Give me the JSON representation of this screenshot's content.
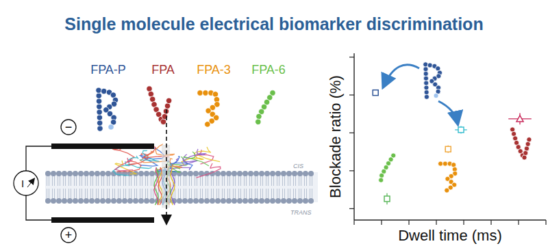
{
  "title": "Single molecule electrical biomarker discrimination",
  "diagram": {
    "cis": "CIS",
    "trans": "TRANS",
    "meter": "I",
    "negative": "−",
    "positive": "+"
  },
  "chart_data": {
    "type": "scatter",
    "xlabel": "Dwell time (ms)",
    "ylabel": "Blockade ratio (%)",
    "xlim": [
      0,
      7
    ],
    "xticks": [
      0,
      1,
      2,
      3,
      4,
      5,
      6,
      7
    ],
    "ylim": [
      -0.3,
      4.1
    ],
    "yticks": [
      0,
      1,
      2,
      3,
      4
    ],
    "tick_labels": false,
    "grid": false,
    "series": [
      {
        "name": "FPA-P",
        "color": "#2f5597",
        "colors": [
          "#2f5597",
          "#3bbfd0"
        ],
        "marker": "square",
        "x": [
          0.78,
          3.9
        ],
        "values": [
          3.06,
          2.08
        ],
        "x_error": [
          0.08,
          0.22
        ],
        "y_error": [
          0.08,
          0.1
        ]
      },
      {
        "name": "FPA",
        "color": "#a83232",
        "colors": [
          "#c8285a"
        ],
        "marker": "triangle",
        "x": [
          6.05
        ],
        "values": [
          2.37
        ],
        "x_error": [
          0.42
        ],
        "y_error": [
          0.15
        ]
      },
      {
        "name": "FPA-3",
        "color": "#e8900c",
        "colors": [
          "#f0a83c"
        ],
        "marker": "square",
        "x": [
          3.43
        ],
        "values": [
          1.57
        ],
        "x_error": [
          0.12
        ],
        "y_error": [
          0.1
        ]
      },
      {
        "name": "FPA-6",
        "color": "#6abf4b",
        "colors": [
          "#5cb85c"
        ],
        "marker": "square",
        "x": [
          1.2
        ],
        "values": [
          0.26
        ],
        "x_error": [
          0.08
        ],
        "y_error": [
          0.15
        ]
      }
    ]
  }
}
